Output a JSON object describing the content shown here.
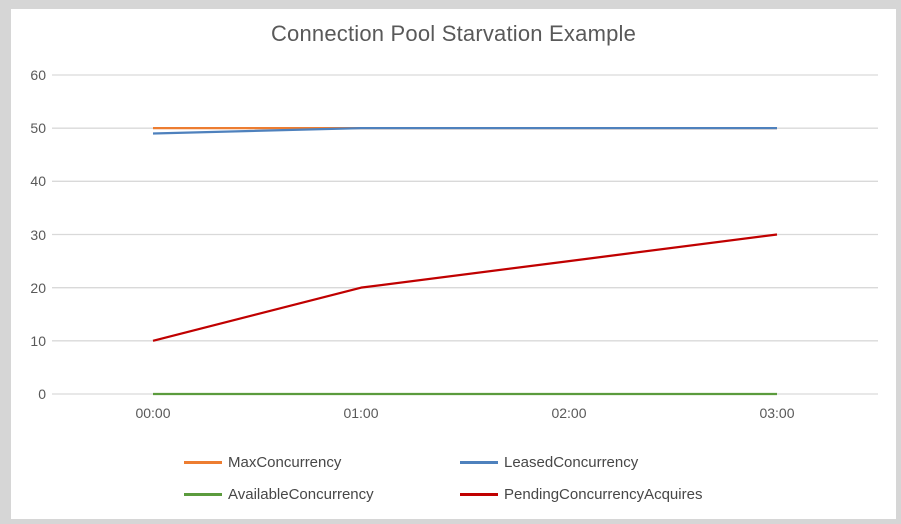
{
  "window": {
    "frame_color": "#d6d6d6",
    "panel_color": "#ffffff"
  },
  "chart_data": {
    "type": "line",
    "title": "Connection Pool Starvation Example",
    "xlabel": "",
    "ylabel": "",
    "x": [
      "00:00",
      "01:00",
      "02:00",
      "03:00"
    ],
    "series": [
      {
        "name": "MaxConcurrency",
        "color": "#ED7D31",
        "values": [
          50,
          50,
          50,
          50
        ]
      },
      {
        "name": "LeasedConcurrency",
        "color": "#4E81BD",
        "values": [
          49,
          50,
          50,
          50
        ]
      },
      {
        "name": "AvailableConcurrency",
        "color": "#5B9B3D",
        "values": [
          0,
          0,
          0,
          0
        ]
      },
      {
        "name": "PendingConcurrencyAcquires",
        "color": "#C00000",
        "values": [
          10,
          20,
          25,
          30
        ]
      }
    ],
    "ylim": [
      0,
      60
    ],
    "yticks": [
      0,
      10,
      20,
      30,
      40,
      50,
      60
    ],
    "grid": "horizontal-only",
    "gridline_color": "#D9D9D9",
    "axis_text_color": "#595959",
    "legend_position": "bottom-two-column",
    "legend_rows": [
      [
        "MaxConcurrency",
        "LeasedConcurrency"
      ],
      [
        "AvailableConcurrency",
        "PendingConcurrencyAcquires"
      ]
    ]
  }
}
